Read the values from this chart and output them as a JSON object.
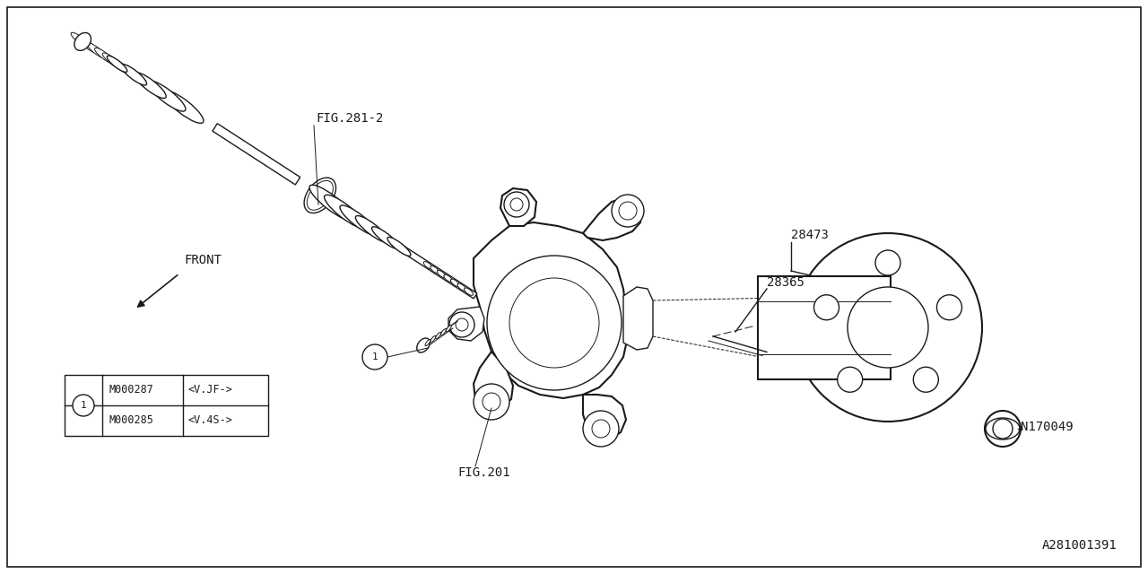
{
  "bg_color": "#ffffff",
  "line_color": "#1a1a1a",
  "fig_label_281": "FIG.281-2",
  "fig_label_201": "FIG.201",
  "part_28473": "28473",
  "part_28365": "28365",
  "part_N170049": "N170049",
  "legend_items": [
    {
      "col1": "M000287",
      "col2": "<V.JF->"
    },
    {
      "col2b": "M000285",
      "col2c": "<V.4S->"
    }
  ],
  "doc_number": "A281001391",
  "front_arrow_label": "FRONT",
  "lw_main": 1.0,
  "lw_thin": 0.7,
  "lw_thick": 1.5
}
